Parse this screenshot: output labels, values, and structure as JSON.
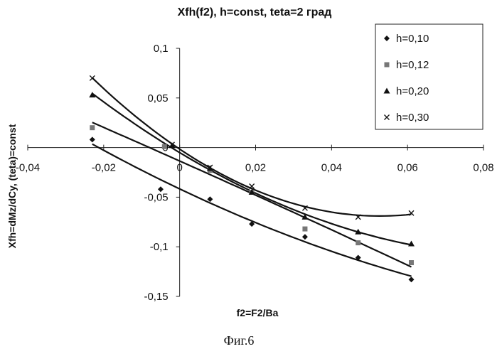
{
  "caption": "Фиг.6",
  "chart_data": {
    "type": "scatter",
    "title": "Xfh(f2), h=const, teta=2 град",
    "xlabel": "f2=F2/Ba",
    "ylabel": "Xfh=dMz/dCy, (teta)=const",
    "xlim": [
      -0.04,
      0.08
    ],
    "ylim": [
      -0.15,
      0.1
    ],
    "x_ticks": [
      "-0,04",
      "-0,02",
      "0",
      "0,02",
      "0,04",
      "0,06",
      "0,08"
    ],
    "y_ticks": [
      "0,1",
      "0,05",
      "0",
      "-0,05",
      "-0,1",
      "-0,15"
    ],
    "legend_position": "top-right",
    "trendlines": "polynomial (one per series)",
    "series": [
      {
        "name": "h=0,10",
        "marker": "diamond",
        "x": [
          -0.023,
          -0.005,
          0.008,
          0.019,
          0.033,
          0.047,
          0.061
        ],
        "y": [
          0.008,
          -0.042,
          -0.052,
          -0.077,
          -0.09,
          -0.111,
          -0.133
        ]
      },
      {
        "name": "h=0,12",
        "marker": "square",
        "x": [
          -0.023,
          -0.004,
          0.008,
          0.019,
          0.033,
          0.047,
          0.061
        ],
        "y": [
          0.02,
          0.001,
          -0.023,
          -0.045,
          -0.082,
          -0.096,
          -0.116
        ]
      },
      {
        "name": "h=0,20",
        "marker": "triangle",
        "x": [
          -0.023,
          -0.002,
          0.008,
          0.019,
          0.033,
          0.047,
          0.061
        ],
        "y": [
          0.053,
          0.002,
          -0.021,
          -0.045,
          -0.07,
          -0.085,
          -0.097
        ]
      },
      {
        "name": "h=0,30",
        "marker": "x",
        "x": [
          -0.023,
          -0.002,
          0.008,
          0.019,
          0.033,
          0.047,
          0.061
        ],
        "y": [
          0.07,
          0.003,
          -0.02,
          -0.039,
          -0.061,
          -0.07,
          -0.066
        ]
      }
    ]
  }
}
